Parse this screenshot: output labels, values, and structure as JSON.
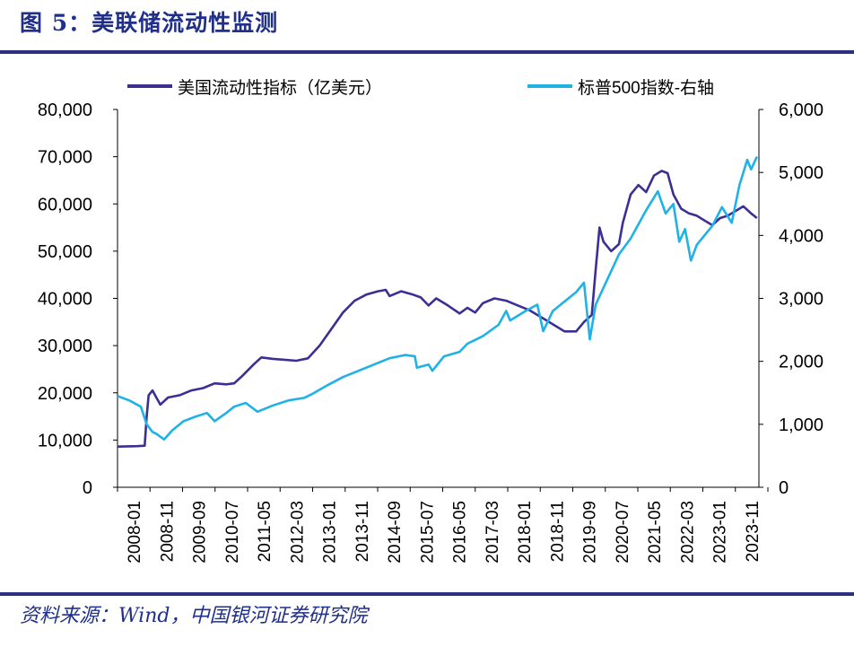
{
  "header": {
    "title": "图 5：美联储流动性监测"
  },
  "footer": {
    "source": "资料来源：Wind，中国银河证券研究院"
  },
  "colors": {
    "liquidity": "#3c2f93",
    "sp500": "#20b2e6",
    "brand": "#1f2f8a"
  },
  "chart_data": {
    "type": "line",
    "title": "美联储流动性监测",
    "xlabel": "",
    "ylabel": "",
    "x_ticks": [
      "2008-01",
      "2008-11",
      "2009-09",
      "2010-07",
      "2011-05",
      "2012-03",
      "2013-01",
      "2013-11",
      "2014-09",
      "2015-07",
      "2016-05",
      "2017-03",
      "2018-01",
      "2018-11",
      "2019-09",
      "2020-07",
      "2021-05",
      "2022-03",
      "2023-01",
      "2023-11"
    ],
    "y_left": {
      "ticks": [
        "80,000",
        "70,000",
        "60,000",
        "50,000",
        "40,000",
        "30,000",
        "20,000",
        "10,000",
        "0"
      ],
      "ylim": [
        0,
        80000
      ]
    },
    "y_right": {
      "ticks": [
        "6,000",
        "5,000",
        "4,000",
        "3,000",
        "2,000",
        "1,000",
        "0"
      ],
      "ylim": [
        0,
        6000
      ]
    },
    "x_range": [
      2008.0,
      2024.5
    ],
    "legend_position": "top",
    "series": [
      {
        "name": "美国流动性指标（亿美元）",
        "axis": "left",
        "points": [
          [
            2008.0,
            8600
          ],
          [
            2008.5,
            8700
          ],
          [
            2008.7,
            8800
          ],
          [
            2008.75,
            15000
          ],
          [
            2008.8,
            19500
          ],
          [
            2008.9,
            20500
          ],
          [
            2009.0,
            19000
          ],
          [
            2009.1,
            17500
          ],
          [
            2009.3,
            19000
          ],
          [
            2009.6,
            19500
          ],
          [
            2009.9,
            20500
          ],
          [
            2010.2,
            21000
          ],
          [
            2010.5,
            22000
          ],
          [
            2010.8,
            21800
          ],
          [
            2011.0,
            22000
          ],
          [
            2011.2,
            23500
          ],
          [
            2011.5,
            26000
          ],
          [
            2011.7,
            27500
          ],
          [
            2012.0,
            27200
          ],
          [
            2012.3,
            27000
          ],
          [
            2012.6,
            26800
          ],
          [
            2012.9,
            27300
          ],
          [
            2013.2,
            30000
          ],
          [
            2013.5,
            33500
          ],
          [
            2013.8,
            37000
          ],
          [
            2014.1,
            39500
          ],
          [
            2014.4,
            40800
          ],
          [
            2014.7,
            41500
          ],
          [
            2014.9,
            41800
          ],
          [
            2015.0,
            40500
          ],
          [
            2015.3,
            41500
          ],
          [
            2015.6,
            40800
          ],
          [
            2015.8,
            40200
          ],
          [
            2016.0,
            38500
          ],
          [
            2016.2,
            40000
          ],
          [
            2016.5,
            38500
          ],
          [
            2016.8,
            36800
          ],
          [
            2017.0,
            38000
          ],
          [
            2017.2,
            37000
          ],
          [
            2017.4,
            39000
          ],
          [
            2017.7,
            40000
          ],
          [
            2018.0,
            39500
          ],
          [
            2018.3,
            38500
          ],
          [
            2018.6,
            37500
          ],
          [
            2018.9,
            36000
          ],
          [
            2019.2,
            34500
          ],
          [
            2019.5,
            33000
          ],
          [
            2019.8,
            33000
          ],
          [
            2020.0,
            35000
          ],
          [
            2020.2,
            36500
          ],
          [
            2020.3,
            46000
          ],
          [
            2020.4,
            55000
          ],
          [
            2020.5,
            52000
          ],
          [
            2020.7,
            50000
          ],
          [
            2020.9,
            51500
          ],
          [
            2021.0,
            56000
          ],
          [
            2021.2,
            62000
          ],
          [
            2021.4,
            64000
          ],
          [
            2021.6,
            62500
          ],
          [
            2021.8,
            66000
          ],
          [
            2022.0,
            67000
          ],
          [
            2022.15,
            66500
          ],
          [
            2022.3,
            62000
          ],
          [
            2022.5,
            59000
          ],
          [
            2022.7,
            58000
          ],
          [
            2022.9,
            57500
          ],
          [
            2023.1,
            56500
          ],
          [
            2023.3,
            55500
          ],
          [
            2023.5,
            57000
          ],
          [
            2023.7,
            57500
          ],
          [
            2023.9,
            58500
          ],
          [
            2024.1,
            59500
          ],
          [
            2024.3,
            58000
          ],
          [
            2024.45,
            57000
          ]
        ]
      },
      {
        "name": "标普500指数-右轴",
        "axis": "right",
        "points": [
          [
            2008.0,
            1450
          ],
          [
            2008.3,
            1380
          ],
          [
            2008.6,
            1280
          ],
          [
            2008.75,
            1000
          ],
          [
            2008.9,
            880
          ],
          [
            2009.0,
            850
          ],
          [
            2009.2,
            760
          ],
          [
            2009.4,
            900
          ],
          [
            2009.7,
            1050
          ],
          [
            2010.0,
            1120
          ],
          [
            2010.3,
            1180
          ],
          [
            2010.5,
            1050
          ],
          [
            2010.8,
            1180
          ],
          [
            2011.0,
            1280
          ],
          [
            2011.3,
            1340
          ],
          [
            2011.6,
            1200
          ],
          [
            2011.8,
            1250
          ],
          [
            2012.0,
            1300
          ],
          [
            2012.4,
            1380
          ],
          [
            2012.8,
            1420
          ],
          [
            2013.0,
            1480
          ],
          [
            2013.4,
            1620
          ],
          [
            2013.8,
            1750
          ],
          [
            2014.2,
            1850
          ],
          [
            2014.6,
            1950
          ],
          [
            2015.0,
            2050
          ],
          [
            2015.4,
            2100
          ],
          [
            2015.65,
            2080
          ],
          [
            2015.7,
            1900
          ],
          [
            2016.0,
            1950
          ],
          [
            2016.1,
            1850
          ],
          [
            2016.4,
            2080
          ],
          [
            2016.8,
            2150
          ],
          [
            2017.0,
            2280
          ],
          [
            2017.4,
            2400
          ],
          [
            2017.8,
            2580
          ],
          [
            2018.0,
            2800
          ],
          [
            2018.1,
            2650
          ],
          [
            2018.5,
            2800
          ],
          [
            2018.8,
            2900
          ],
          [
            2018.95,
            2480
          ],
          [
            2019.2,
            2800
          ],
          [
            2019.5,
            2950
          ],
          [
            2019.8,
            3100
          ],
          [
            2020.0,
            3250
          ],
          [
            2020.15,
            2350
          ],
          [
            2020.3,
            2900
          ],
          [
            2020.6,
            3300
          ],
          [
            2020.9,
            3700
          ],
          [
            2021.2,
            3950
          ],
          [
            2021.6,
            4400
          ],
          [
            2021.9,
            4700
          ],
          [
            2022.1,
            4350
          ],
          [
            2022.3,
            4500
          ],
          [
            2022.45,
            3900
          ],
          [
            2022.6,
            4100
          ],
          [
            2022.75,
            3600
          ],
          [
            2022.9,
            3850
          ],
          [
            2023.1,
            4000
          ],
          [
            2023.3,
            4150
          ],
          [
            2023.55,
            4450
          ],
          [
            2023.8,
            4200
          ],
          [
            2024.0,
            4800
          ],
          [
            2024.2,
            5200
          ],
          [
            2024.3,
            5050
          ],
          [
            2024.45,
            5250
          ]
        ]
      }
    ]
  }
}
